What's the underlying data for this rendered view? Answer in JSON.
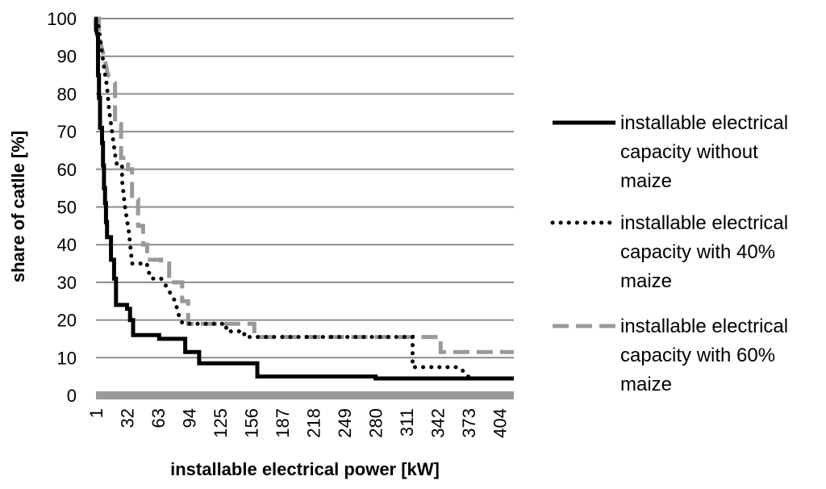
{
  "chart_data": {
    "type": "line",
    "title": "",
    "xlabel": "installable electrical power [kW]",
    "ylabel": "share of catlle [%]",
    "ylim": [
      0,
      100
    ],
    "yticks": [
      "0",
      "10",
      "20",
      "30",
      "40",
      "50",
      "60",
      "70",
      "80",
      "90",
      "100"
    ],
    "xlim": [
      1,
      418
    ],
    "xticks": [
      "1",
      "32",
      "63",
      "94",
      "125",
      "156",
      "187",
      "218",
      "249",
      "280",
      "311",
      "342",
      "373",
      "404"
    ],
    "grid": "horizontal",
    "legend_position": "right",
    "series": [
      {
        "name": "installable electrical capacity without maize",
        "color": "#000000",
        "style": "solid",
        "points": [
          [
            1,
            100
          ],
          [
            1,
            97
          ],
          [
            3,
            95
          ],
          [
            3,
            85
          ],
          [
            4,
            85
          ],
          [
            4,
            79
          ],
          [
            5,
            79
          ],
          [
            5,
            71
          ],
          [
            7,
            71
          ],
          [
            7,
            67
          ],
          [
            8,
            67
          ],
          [
            8,
            61
          ],
          [
            9,
            61
          ],
          [
            9,
            55
          ],
          [
            10,
            55
          ],
          [
            10,
            51
          ],
          [
            11,
            51
          ],
          [
            11,
            46
          ],
          [
            12,
            46
          ],
          [
            12,
            42
          ],
          [
            16,
            42
          ],
          [
            16,
            36
          ],
          [
            19,
            36
          ],
          [
            19,
            31
          ],
          [
            21,
            31
          ],
          [
            21,
            24
          ],
          [
            32,
            24
          ],
          [
            32,
            23
          ],
          [
            35,
            23
          ],
          [
            35,
            20
          ],
          [
            38,
            20
          ],
          [
            38,
            16
          ],
          [
            64,
            16
          ],
          [
            64,
            15
          ],
          [
            90,
            15
          ],
          [
            90,
            11.5
          ],
          [
            104,
            11.5
          ],
          [
            104,
            8.5
          ],
          [
            162,
            8.5
          ],
          [
            162,
            5
          ],
          [
            280,
            5
          ],
          [
            280,
            4.5
          ],
          [
            418,
            4.5
          ]
        ]
      },
      {
        "name": "installable electrical capacity with 40% maize",
        "color": "#000000",
        "style": "dotted",
        "points": [
          [
            1,
            100
          ],
          [
            3,
            99
          ],
          [
            5,
            95
          ],
          [
            7,
            91
          ],
          [
            9,
            87
          ],
          [
            12,
            82
          ],
          [
            14,
            76
          ],
          [
            17,
            70
          ],
          [
            20,
            64
          ],
          [
            22,
            61
          ],
          [
            27,
            61
          ],
          [
            27,
            57
          ],
          [
            30,
            50
          ],
          [
            34,
            43
          ],
          [
            37,
            35
          ],
          [
            52,
            35
          ],
          [
            52,
            34
          ],
          [
            56,
            31
          ],
          [
            66,
            31
          ],
          [
            71,
            29
          ],
          [
            80,
            25
          ],
          [
            85,
            20
          ],
          [
            88,
            19
          ],
          [
            131,
            19
          ],
          [
            131,
            17
          ],
          [
            149,
            17
          ],
          [
            149,
            15.5
          ],
          [
            317,
            15.5
          ],
          [
            317,
            7.5
          ],
          [
            362,
            7.5
          ],
          [
            370,
            6
          ],
          [
            374,
            4.5
          ],
          [
            418,
            4.5
          ]
        ]
      },
      {
        "name": "installable electrical capacity with 60% maize",
        "color": "#999999",
        "style": "dashed",
        "points": [
          [
            1,
            100
          ],
          [
            4,
            100
          ],
          [
            4,
            95
          ],
          [
            9,
            90
          ],
          [
            13,
            85
          ],
          [
            20,
            83
          ],
          [
            20,
            72
          ],
          [
            26,
            72
          ],
          [
            26,
            63
          ],
          [
            33,
            63
          ],
          [
            33,
            60
          ],
          [
            37,
            60
          ],
          [
            37,
            52
          ],
          [
            43,
            52
          ],
          [
            43,
            45
          ],
          [
            48,
            45
          ],
          [
            48,
            40
          ],
          [
            52,
            40
          ],
          [
            52,
            36
          ],
          [
            66,
            36
          ],
          [
            66,
            35
          ],
          [
            74,
            35
          ],
          [
            74,
            30
          ],
          [
            87,
            30
          ],
          [
            87,
            25
          ],
          [
            93,
            25
          ],
          [
            93,
            19
          ],
          [
            159,
            19
          ],
          [
            159,
            15.5
          ],
          [
            345,
            15.5
          ],
          [
            345,
            11.5
          ],
          [
            418,
            11.5
          ]
        ]
      }
    ]
  }
}
